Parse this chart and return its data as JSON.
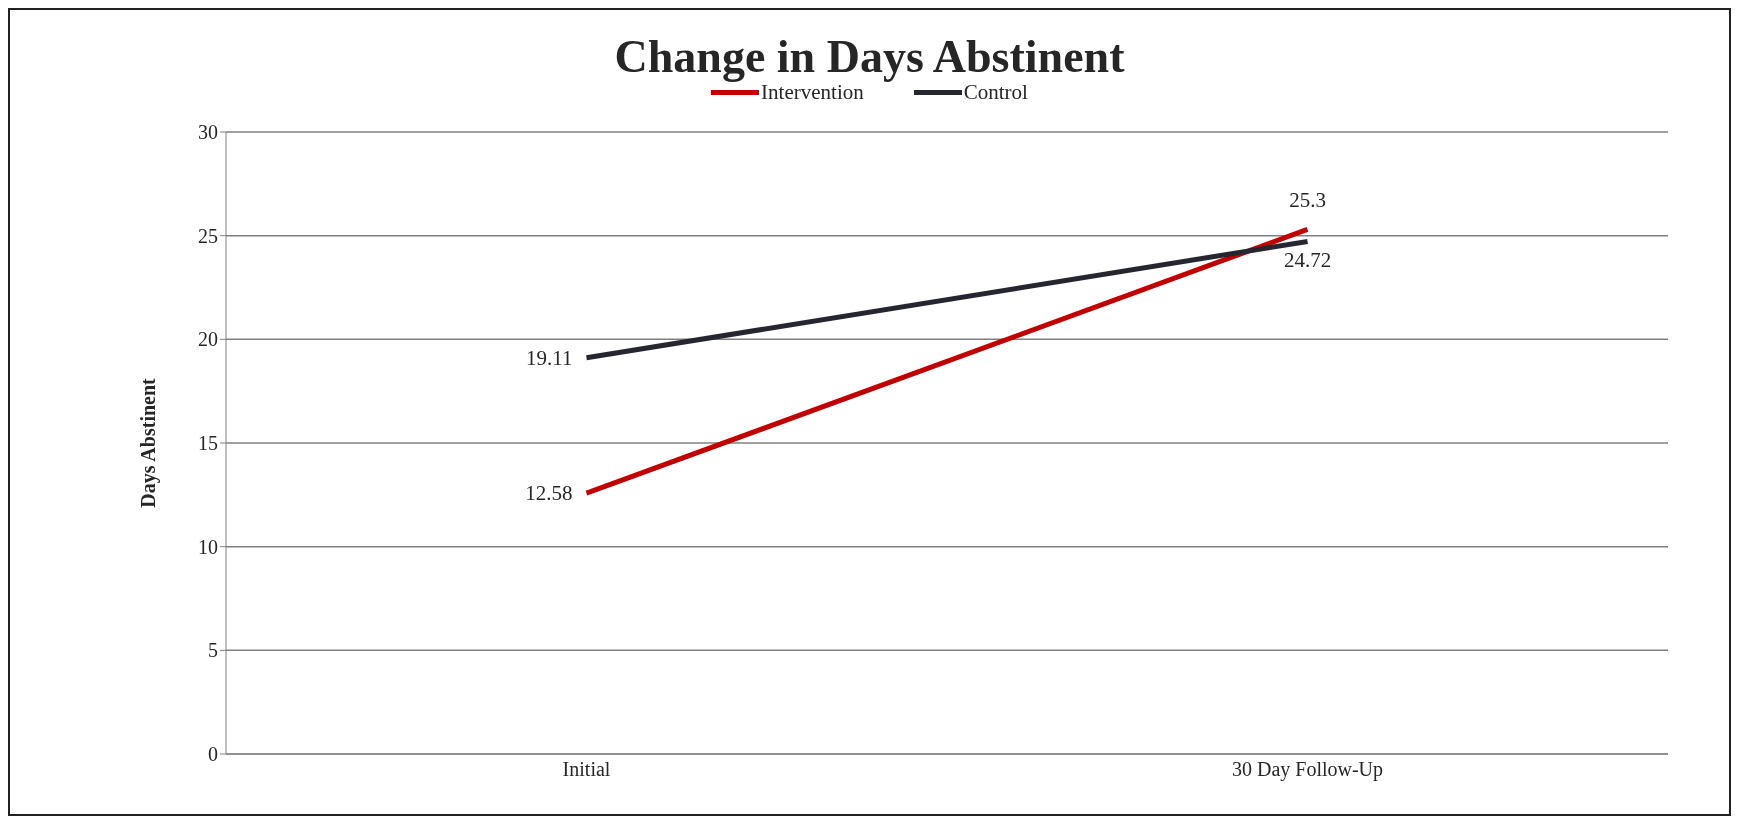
{
  "chart_data": {
    "type": "line",
    "title": "Change in Days Abstinent",
    "ylabel": "Days Abstinent",
    "categories": [
      "Initial",
      "30 Day Follow-Up"
    ],
    "series": [
      {
        "name": "Intervention",
        "color": "#c00000",
        "values": [
          12.58,
          25.3
        ]
      },
      {
        "name": "Control",
        "color": "#262631",
        "values": [
          19.11,
          24.72
        ]
      }
    ],
    "ylim": [
      0,
      30
    ],
    "yticks": [
      0,
      5,
      10,
      15,
      20,
      25,
      30
    ],
    "grid": "y",
    "legend": "top",
    "data_labels": true,
    "marker": "none",
    "line_style": "solid"
  }
}
